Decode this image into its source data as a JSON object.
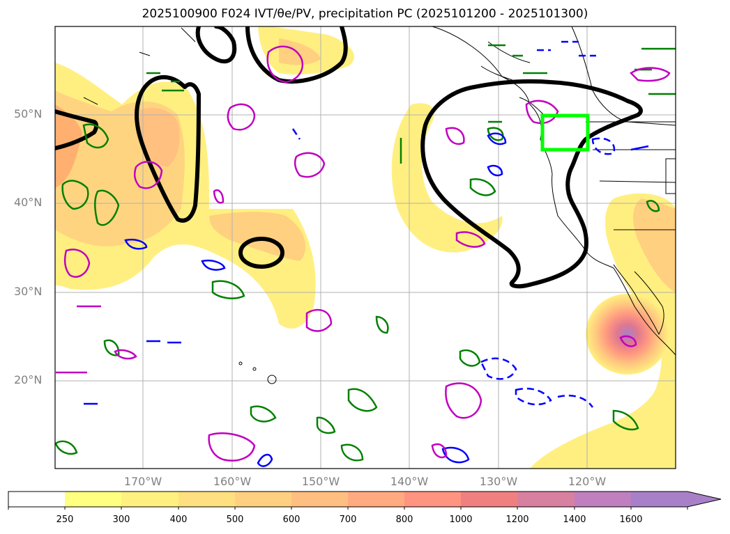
{
  "title": "2025100900 F024 IVT/θe/PV, precipitation PC (2025101200 - 2025101300)",
  "map": {
    "latitude_labels": [
      "50°N",
      "40°N",
      "30°N",
      "20°N"
    ],
    "longitude_labels": [
      "170°W",
      "160°W",
      "150°W",
      "140°W",
      "130°W",
      "120°W"
    ],
    "grid_color": "#b0b0b0",
    "coastline_color": "#000000",
    "focus_box_color": "#00ff00",
    "contour_colors": {
      "thick_black": "#000000",
      "green": "#008000",
      "blue": "#0000ff",
      "magenta": "#c000c0"
    }
  },
  "colorbar": {
    "tick_labels": [
      "250",
      "300",
      "400",
      "500",
      "600",
      "700",
      "800",
      "1000",
      "1200",
      "1400",
      "1600"
    ],
    "colors": [
      "#ffffff",
      "#ffff80",
      "#fff080",
      "#ffe080",
      "#ffd080",
      "#ffbf80",
      "#ffaa80",
      "#ff9480",
      "#f08080",
      "#d880a0",
      "#c080c0",
      "#a880c8"
    ]
  }
}
